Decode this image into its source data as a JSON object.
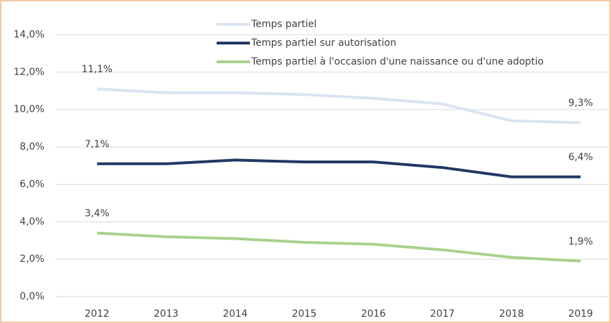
{
  "chart_data": {
    "type": "line",
    "categories": [
      "2012",
      "2013",
      "2014",
      "2015",
      "2016",
      "2017",
      "2018",
      "2019"
    ],
    "series": [
      {
        "name": "Temps partiel",
        "color": "#dae3f3",
        "values": [
          11.1,
          10.9,
          10.9,
          10.8,
          10.6,
          10.3,
          9.4,
          9.3
        ],
        "value_labels": [
          "11,1%",
          null,
          null,
          null,
          null,
          null,
          null,
          "9,3%"
        ]
      },
      {
        "name": "Temps partiel sur autorisation",
        "color": "#203864",
        "values": [
          7.1,
          7.1,
          7.3,
          7.2,
          7.2,
          6.9,
          6.4,
          6.4
        ],
        "value_labels": [
          "7,1%",
          null,
          null,
          null,
          null,
          null,
          null,
          "6,4%"
        ]
      },
      {
        "name": "Temps partiel à l'occasion d'une naissance ou d'une adoptio",
        "color": "#a9d18e",
        "values": [
          3.4,
          3.2,
          3.1,
          2.9,
          2.8,
          2.5,
          2.1,
          1.9
        ],
        "value_labels": [
          "3,4%",
          null,
          null,
          null,
          null,
          null,
          null,
          "1,9%"
        ]
      }
    ],
    "ylim": [
      0,
      14
    ],
    "yticks": [
      {
        "value": 0,
        "label": "0,0%"
      },
      {
        "value": 2,
        "label": "2,0%"
      },
      {
        "value": 4,
        "label": "4,0%"
      },
      {
        "value": 6,
        "label": "6,0%"
      },
      {
        "value": 8,
        "label": "8,0%"
      },
      {
        "value": 10,
        "label": "10,0%"
      },
      {
        "value": 12,
        "label": "12,0%"
      },
      {
        "value": 14,
        "label": "14,0%"
      }
    ],
    "grid": true,
    "legend": "top"
  }
}
